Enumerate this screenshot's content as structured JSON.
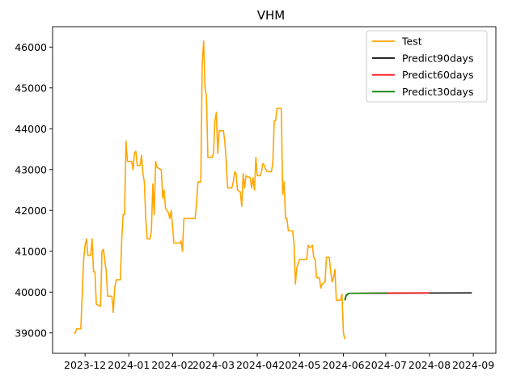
{
  "chart_data": {
    "type": "line",
    "title": "VHM",
    "xlabel": "",
    "ylabel": "",
    "legend_position": "top-right",
    "grid": false,
    "xlim": [
      "2023-11-08",
      "2024-09-17"
    ],
    "ylim": [
      38500,
      46500
    ],
    "x_ticks": [
      "2023-12",
      "2024-01",
      "2024-02",
      "2024-03",
      "2024-04",
      "2024-05",
      "2024-06",
      "2024-07",
      "2024-08",
      "2024-09"
    ],
    "y_ticks": [
      39000,
      40000,
      41000,
      42000,
      43000,
      44000,
      45000,
      46000
    ],
    "series": [
      {
        "name": "Test",
        "color": "#ffa500",
        "points": [
          [
            "2023-11-23",
            39000
          ],
          [
            "2023-11-24",
            39000
          ],
          [
            "2023-11-25",
            39100
          ],
          [
            "2023-11-28",
            39100
          ],
          [
            "2023-11-30",
            40800
          ],
          [
            "2023-12-01",
            41150
          ],
          [
            "2023-12-02",
            41300
          ],
          [
            "2023-12-03",
            40900
          ],
          [
            "2023-12-05",
            40900
          ],
          [
            "2023-12-06",
            41300
          ],
          [
            "2023-12-07",
            40500
          ],
          [
            "2023-12-08",
            40500
          ],
          [
            "2023-12-09",
            39700
          ],
          [
            "2023-12-12",
            39650
          ],
          [
            "2023-12-13",
            41000
          ],
          [
            "2023-12-14",
            41050
          ],
          [
            "2023-12-16",
            40500
          ],
          [
            "2023-12-17",
            39900
          ],
          [
            "2023-12-20",
            39900
          ],
          [
            "2023-12-21",
            39500
          ],
          [
            "2023-12-22",
            40100
          ],
          [
            "2023-12-23",
            40300
          ],
          [
            "2023-12-26",
            40300
          ],
          [
            "2023-12-27",
            41300
          ],
          [
            "2023-12-28",
            41900
          ],
          [
            "2023-12-29",
            41900
          ],
          [
            "2023-12-30",
            43700
          ],
          [
            "2023-12-31",
            43200
          ],
          [
            "2024-01-03",
            43200
          ],
          [
            "2024-01-04",
            43000
          ],
          [
            "2024-01-05",
            43400
          ],
          [
            "2024-01-06",
            43450
          ],
          [
            "2024-01-07",
            43100
          ],
          [
            "2024-01-09",
            43100
          ],
          [
            "2024-01-10",
            43350
          ],
          [
            "2024-01-11",
            42900
          ],
          [
            "2024-01-12",
            42700
          ],
          [
            "2024-01-13",
            41800
          ],
          [
            "2024-01-14",
            41300
          ],
          [
            "2024-01-16",
            41300
          ],
          [
            "2024-01-17",
            41500
          ],
          [
            "2024-01-18",
            42650
          ],
          [
            "2024-01-19",
            41900
          ],
          [
            "2024-01-20",
            43200
          ],
          [
            "2024-01-21",
            43050
          ],
          [
            "2024-01-24",
            43000
          ],
          [
            "2024-01-25",
            42300
          ],
          [
            "2024-01-26",
            42500
          ],
          [
            "2024-01-27",
            42050
          ],
          [
            "2024-01-29",
            41950
          ],
          [
            "2024-01-30",
            41800
          ],
          [
            "2024-01-31",
            42000
          ],
          [
            "2024-02-02",
            41200
          ],
          [
            "2024-02-06",
            41200
          ],
          [
            "2024-02-07",
            41250
          ],
          [
            "2024-02-08",
            41000
          ],
          [
            "2024-02-09",
            41800
          ],
          [
            "2024-02-17",
            41800
          ],
          [
            "2024-02-18",
            42200
          ],
          [
            "2024-02-19",
            42700
          ],
          [
            "2024-02-21",
            42700
          ],
          [
            "2024-02-22",
            45600
          ],
          [
            "2024-02-23",
            46150
          ],
          [
            "2024-02-24",
            45000
          ],
          [
            "2024-02-25",
            44800
          ],
          [
            "2024-02-26",
            43300
          ],
          [
            "2024-02-29",
            43300
          ],
          [
            "2024-03-01",
            43400
          ],
          [
            "2024-03-02",
            44200
          ],
          [
            "2024-03-03",
            44400
          ],
          [
            "2024-03-04",
            43400
          ],
          [
            "2024-03-05",
            43950
          ],
          [
            "2024-03-08",
            43950
          ],
          [
            "2024-03-09",
            43700
          ],
          [
            "2024-03-10",
            43200
          ],
          [
            "2024-03-11",
            42550
          ],
          [
            "2024-03-14",
            42550
          ],
          [
            "2024-03-15",
            42700
          ],
          [
            "2024-03-16",
            42950
          ],
          [
            "2024-03-17",
            42900
          ],
          [
            "2024-03-18",
            42500
          ],
          [
            "2024-03-20",
            42450
          ],
          [
            "2024-03-21",
            42100
          ],
          [
            "2024-03-22",
            42900
          ],
          [
            "2024-03-23",
            42550
          ],
          [
            "2024-03-24",
            42850
          ],
          [
            "2024-03-27",
            42800
          ],
          [
            "2024-03-28",
            42550
          ],
          [
            "2024-03-29",
            42800
          ],
          [
            "2024-03-30",
            42500
          ],
          [
            "2024-03-31",
            43300
          ],
          [
            "2024-04-01",
            42850
          ],
          [
            "2024-04-03",
            42850
          ],
          [
            "2024-04-04",
            42950
          ],
          [
            "2024-04-05",
            43150
          ],
          [
            "2024-04-06",
            43100
          ],
          [
            "2024-04-07",
            43000
          ],
          [
            "2024-04-08",
            42950
          ],
          [
            "2024-04-11",
            42950
          ],
          [
            "2024-04-12",
            43150
          ],
          [
            "2024-04-13",
            44200
          ],
          [
            "2024-04-14",
            44200
          ],
          [
            "2024-04-15",
            44500
          ],
          [
            "2024-04-18",
            44500
          ],
          [
            "2024-04-19",
            42400
          ],
          [
            "2024-04-20",
            42700
          ],
          [
            "2024-04-21",
            41800
          ],
          [
            "2024-04-22",
            41800
          ],
          [
            "2024-04-23",
            41500
          ],
          [
            "2024-04-26",
            41500
          ],
          [
            "2024-04-27",
            41200
          ],
          [
            "2024-04-28",
            40200
          ],
          [
            "2024-04-29",
            40600
          ],
          [
            "2024-05-01",
            40800
          ],
          [
            "2024-05-06",
            40800
          ],
          [
            "2024-05-07",
            41150
          ],
          [
            "2024-05-08",
            41100
          ],
          [
            "2024-05-09",
            41100
          ],
          [
            "2024-05-10",
            41150
          ],
          [
            "2024-05-11",
            40850
          ],
          [
            "2024-05-12",
            40800
          ],
          [
            "2024-05-13",
            40350
          ],
          [
            "2024-05-15",
            40350
          ],
          [
            "2024-05-16",
            40100
          ],
          [
            "2024-05-17",
            40200
          ],
          [
            "2024-05-19",
            40250
          ],
          [
            "2024-05-20",
            40850
          ],
          [
            "2024-05-22",
            40850
          ],
          [
            "2024-05-23",
            40500
          ],
          [
            "2024-05-24",
            40250
          ],
          [
            "2024-05-25",
            40350
          ],
          [
            "2024-05-26",
            40550
          ],
          [
            "2024-05-27",
            39800
          ],
          [
            "2024-05-30",
            39800
          ],
          [
            "2024-05-31",
            39950
          ],
          [
            "2024-06-01",
            39000
          ],
          [
            "2024-06-02",
            38850
          ]
        ]
      },
      {
        "name": "Predict90days",
        "color": "#000000",
        "points": [
          [
            "2024-06-02",
            39800
          ],
          [
            "2024-06-03",
            39920
          ],
          [
            "2024-06-05",
            39970
          ],
          [
            "2024-08-31",
            39980
          ]
        ]
      },
      {
        "name": "Predict60days",
        "color": "#ff0000",
        "points": [
          [
            "2024-06-02",
            39800
          ],
          [
            "2024-06-03",
            39920
          ],
          [
            "2024-06-05",
            39970
          ],
          [
            "2024-08-01",
            39980
          ]
        ]
      },
      {
        "name": "Predict30days",
        "color": "#008000",
        "points": [
          [
            "2024-06-02",
            39800
          ],
          [
            "2024-06-03",
            39920
          ],
          [
            "2024-06-05",
            39970
          ],
          [
            "2024-07-02",
            39975
          ]
        ]
      }
    ]
  }
}
